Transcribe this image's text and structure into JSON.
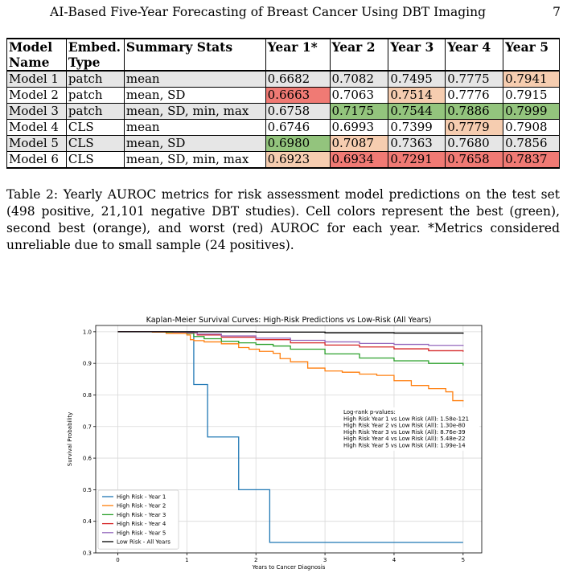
{
  "header": {
    "running_title": "AI-Based Five-Year Forecasting of Breast Cancer Using DBT Imaging",
    "page_number": "7"
  },
  "table": {
    "headers": [
      [
        "Model",
        "Name"
      ],
      [
        "Embed.",
        "Type"
      ],
      [
        "Summary Stats"
      ],
      [
        "Year 1*"
      ],
      [
        "Year 2"
      ],
      [
        "Year 3"
      ],
      [
        "Year 4"
      ],
      [
        "Year 5"
      ]
    ],
    "rows": [
      {
        "name": "Model 1",
        "embed": "patch",
        "stats": "mean",
        "values": [
          "0.6682",
          "0.7082",
          "0.7495",
          "0.7775",
          "0.7941"
        ],
        "colors": [
          "",
          "",
          "",
          "",
          "orange"
        ],
        "shade": true
      },
      {
        "name": "Model 2",
        "embed": "patch",
        "stats": "mean, SD",
        "values": [
          "0.6663",
          "0.7063",
          "0.7514",
          "0.7776",
          "0.7915"
        ],
        "colors": [
          "red",
          "",
          "orange",
          "",
          ""
        ],
        "shade": false
      },
      {
        "name": "Model 3",
        "embed": "patch",
        "stats": "mean, SD, min, max",
        "values": [
          "0.6758",
          "0.7175",
          "0.7544",
          "0.7886",
          "0.7999"
        ],
        "colors": [
          "",
          "green",
          "green",
          "green",
          "green"
        ],
        "shade": true
      },
      {
        "name": "Model 4",
        "embed": "CLS",
        "stats": "mean",
        "values": [
          "0.6746",
          "0.6993",
          "0.7399",
          "0.7779",
          "0.7908"
        ],
        "colors": [
          "",
          "",
          "",
          "orange",
          ""
        ],
        "shade": false
      },
      {
        "name": "Model 5",
        "embed": "CLS",
        "stats": "mean, SD",
        "values": [
          "0.6980",
          "0.7087",
          "0.7363",
          "0.7680",
          "0.7856"
        ],
        "colors": [
          "green",
          "orange",
          "",
          "",
          ""
        ],
        "shade": true
      },
      {
        "name": "Model 6",
        "embed": "CLS",
        "stats": "mean, SD, min, max",
        "values": [
          "0.6923",
          "0.6934",
          "0.7291",
          "0.7658",
          "0.7837"
        ],
        "colors": [
          "orange",
          "red",
          "red",
          "red",
          "red"
        ],
        "shade": false
      }
    ],
    "cell_colors": {
      "green": "#93c47d",
      "orange": "#f6cdb0",
      "red": "#f07a74",
      "shade": "#e6e6e6"
    }
  },
  "caption": "Table 2: Yearly AUROC metrics for risk assessment model predictions on the test set (498 positive, 21,101 negative DBT studies). Cell colors represent the best (green), second best (orange), and worst (red) AUROC for each year. *Metrics considered unreliable due to small sample (24 positives).",
  "chart_data": {
    "type": "line",
    "title": "Kaplan-Meier Survival Curves: High-Risk Predictions vs Low-Risk (All Years)",
    "xlabel": "Years to Cancer Diagnosis",
    "ylabel": "Survival Probability",
    "xlim": [
      -0.32,
      5.27
    ],
    "ylim": [
      0.3,
      1.02
    ],
    "xticks": [
      0,
      1,
      2,
      3,
      4,
      5
    ],
    "yticks": [
      0.3,
      0.4,
      0.5,
      0.6,
      0.7,
      0.8,
      0.9,
      1.0
    ],
    "grid": true,
    "legend_position": "lower-left",
    "step": true,
    "series": [
      {
        "name": "High Risk - Year 1",
        "color": "#1f77b4",
        "points": [
          [
            0,
            1.0
          ],
          [
            1.1,
            1.0
          ],
          [
            1.1,
            0.833
          ],
          [
            1.3,
            0.833
          ],
          [
            1.3,
            0.667
          ],
          [
            1.75,
            0.667
          ],
          [
            1.75,
            0.5
          ],
          [
            2.2,
            0.5
          ],
          [
            2.2,
            0.333
          ],
          [
            5.0,
            0.333
          ]
        ]
      },
      {
        "name": "High Risk - Year 2",
        "color": "#ff7f0e",
        "points": [
          [
            0,
            1.0
          ],
          [
            0.5,
            0.999
          ],
          [
            0.7,
            0.995
          ],
          [
            1.0,
            0.99
          ],
          [
            1.05,
            0.975
          ],
          [
            1.1,
            0.972
          ],
          [
            1.25,
            0.968
          ],
          [
            1.5,
            0.962
          ],
          [
            1.75,
            0.95
          ],
          [
            1.9,
            0.945
          ],
          [
            2.05,
            0.938
          ],
          [
            2.25,
            0.932
          ],
          [
            2.35,
            0.915
          ],
          [
            2.5,
            0.905
          ],
          [
            2.75,
            0.885
          ],
          [
            3.0,
            0.876
          ],
          [
            3.25,
            0.872
          ],
          [
            3.5,
            0.866
          ],
          [
            3.75,
            0.862
          ],
          [
            4.0,
            0.845
          ],
          [
            4.25,
            0.83
          ],
          [
            4.5,
            0.82
          ],
          [
            4.75,
            0.81
          ],
          [
            4.85,
            0.782
          ],
          [
            5.0,
            0.78
          ]
        ]
      },
      {
        "name": "High Risk - Year 3",
        "color": "#2ca02c",
        "points": [
          [
            0,
            1.0
          ],
          [
            0.7,
            0.999
          ],
          [
            1.0,
            0.995
          ],
          [
            1.1,
            0.985
          ],
          [
            1.25,
            0.978
          ],
          [
            1.5,
            0.97
          ],
          [
            1.75,
            0.965
          ],
          [
            2.0,
            0.96
          ],
          [
            2.25,
            0.955
          ],
          [
            2.5,
            0.945
          ],
          [
            3.0,
            0.93
          ],
          [
            3.5,
            0.917
          ],
          [
            4.0,
            0.908
          ],
          [
            4.5,
            0.9
          ],
          [
            5.0,
            0.893
          ]
        ]
      },
      {
        "name": "High Risk - Year 4",
        "color": "#d62728",
        "points": [
          [
            0,
            1.0
          ],
          [
            0.8,
            0.999
          ],
          [
            1.0,
            0.997
          ],
          [
            1.15,
            0.99
          ],
          [
            1.5,
            0.983
          ],
          [
            2.0,
            0.975
          ],
          [
            2.5,
            0.965
          ],
          [
            3.0,
            0.958
          ],
          [
            3.5,
            0.952
          ],
          [
            4.0,
            0.946
          ],
          [
            4.5,
            0.94
          ],
          [
            5.0,
            0.937
          ]
        ]
      },
      {
        "name": "High Risk - Year 5",
        "color": "#9467bd",
        "points": [
          [
            0,
            1.0
          ],
          [
            0.8,
            0.999
          ],
          [
            1.0,
            0.998
          ],
          [
            1.15,
            0.993
          ],
          [
            1.5,
            0.987
          ],
          [
            2.0,
            0.98
          ],
          [
            2.5,
            0.973
          ],
          [
            3.0,
            0.968
          ],
          [
            3.5,
            0.963
          ],
          [
            4.0,
            0.96
          ],
          [
            4.5,
            0.957
          ],
          [
            5.0,
            0.955
          ]
        ]
      },
      {
        "name": "Low Risk - All Years",
        "color": "#000000",
        "points": [
          [
            0,
            1.0
          ],
          [
            1.0,
            1.0
          ],
          [
            2.0,
            0.999
          ],
          [
            3.0,
            0.997
          ],
          [
            4.0,
            0.996
          ],
          [
            5.0,
            0.994
          ]
        ]
      }
    ],
    "annotation": {
      "lines": [
        "Log-rank p-values:",
        "High Risk Year 1 vs Low Risk (All): 1.58e-121",
        "High Risk Year 2 vs Low Risk (All): 1.30e-80",
        "High Risk Year 3 vs Low Risk (All): 8.76e-39",
        "High Risk Year 4 vs Low Risk (All): 5.48e-22",
        "High Risk Year 5 vs Low Risk (All): 1.99e-14"
      ]
    }
  }
}
